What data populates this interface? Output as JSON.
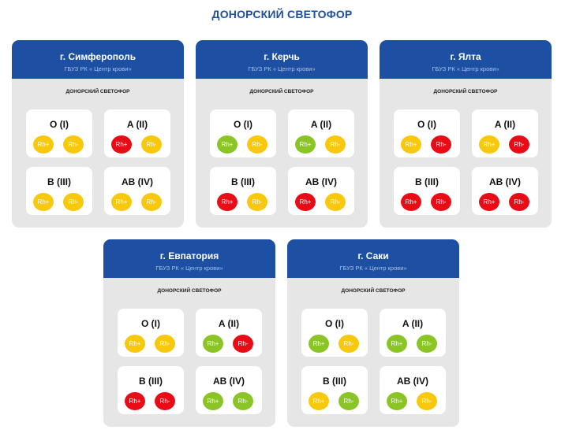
{
  "page_title": "ДОНОРСКИЙ СВЕТОФОР",
  "colors": {
    "yellow": "#f7c600",
    "red": "#e8000b",
    "green": "#84c21a",
    "header_blue": "#1d4fa3"
  },
  "cards": [
    {
      "city": "г. Симферополь",
      "org": "ГБУЗ РК « Центр крови»",
      "subtitle": "ДОНОРСКИЙ СВЕТОФОР",
      "groups": [
        {
          "label": "O (I)",
          "pos": {
            "label": "Rh+",
            "status": "yellow"
          },
          "neg": {
            "label": "Rh-",
            "status": "yellow"
          }
        },
        {
          "label": "A (II)",
          "pos": {
            "label": "Rh+",
            "status": "red"
          },
          "neg": {
            "label": "Rh-",
            "status": "yellow"
          }
        },
        {
          "label": "B (III)",
          "pos": {
            "label": "Rh+",
            "status": "yellow"
          },
          "neg": {
            "label": "Rh-",
            "status": "yellow"
          }
        },
        {
          "label": "AB (IV)",
          "pos": {
            "label": "Rh+",
            "status": "yellow"
          },
          "neg": {
            "label": "Rh-",
            "status": "yellow"
          }
        }
      ]
    },
    {
      "city": "г. Керчь",
      "org": "ГБУЗ РК « Центр крови»",
      "subtitle": "ДОНОРСКИЙ СВЕТОФОР",
      "groups": [
        {
          "label": "O (I)",
          "pos": {
            "label": "Rh+",
            "status": "green"
          },
          "neg": {
            "label": "Rh-",
            "status": "yellow"
          }
        },
        {
          "label": "A (II)",
          "pos": {
            "label": "Rh+",
            "status": "green"
          },
          "neg": {
            "label": "Rh-",
            "status": "yellow"
          }
        },
        {
          "label": "B (III)",
          "pos": {
            "label": "Rh+",
            "status": "red"
          },
          "neg": {
            "label": "Rh-",
            "status": "yellow"
          }
        },
        {
          "label": "AB (IV)",
          "pos": {
            "label": "Rh+",
            "status": "red"
          },
          "neg": {
            "label": "Rh-",
            "status": "yellow"
          }
        }
      ]
    },
    {
      "city": "г. Ялта",
      "org": "ГБУЗ РК « Центр крови»",
      "subtitle": "ДОНОРСКИЙ СВЕТОФОР",
      "groups": [
        {
          "label": "O (I)",
          "pos": {
            "label": "Rh+",
            "status": "yellow"
          },
          "neg": {
            "label": "Rh-",
            "status": "red"
          }
        },
        {
          "label": "A (II)",
          "pos": {
            "label": "Rh+",
            "status": "yellow"
          },
          "neg": {
            "label": "Rh-",
            "status": "red"
          }
        },
        {
          "label": "B (III)",
          "pos": {
            "label": "Rh+",
            "status": "red"
          },
          "neg": {
            "label": "Rh-",
            "status": "red"
          }
        },
        {
          "label": "AB (IV)",
          "pos": {
            "label": "Rh+",
            "status": "red"
          },
          "neg": {
            "label": "Rh-",
            "status": "red"
          }
        }
      ]
    },
    {
      "city": "г. Евпатория",
      "org": "ГБУЗ РК « Центр крови»",
      "subtitle": "ДОНОРСКИЙ СВЕТОФОР",
      "groups": [
        {
          "label": "O (I)",
          "pos": {
            "label": "Rh+",
            "status": "yellow"
          },
          "neg": {
            "label": "Rh-",
            "status": "yellow"
          }
        },
        {
          "label": "A (II)",
          "pos": {
            "label": "Rh+",
            "status": "green"
          },
          "neg": {
            "label": "Rh-",
            "status": "red"
          }
        },
        {
          "label": "B (III)",
          "pos": {
            "label": "Rh+",
            "status": "red"
          },
          "neg": {
            "label": "Rh-",
            "status": "red"
          }
        },
        {
          "label": "AB (IV)",
          "pos": {
            "label": "Rh+",
            "status": "green"
          },
          "neg": {
            "label": "Rh-",
            "status": "green"
          }
        }
      ]
    },
    {
      "city": "г. Саки",
      "org": "ГБУЗ РК « Центр крови»",
      "subtitle": "ДОНОРСКИЙ СВЕТОФОР",
      "groups": [
        {
          "label": "O (I)",
          "pos": {
            "label": "Rh+",
            "status": "green"
          },
          "neg": {
            "label": "Rh-",
            "status": "yellow"
          }
        },
        {
          "label": "A (II)",
          "pos": {
            "label": "Rh+",
            "status": "green"
          },
          "neg": {
            "label": "Rh-",
            "status": "green"
          }
        },
        {
          "label": "B (III)",
          "pos": {
            "label": "Rh+",
            "status": "yellow"
          },
          "neg": {
            "label": "Rh-",
            "status": "green"
          }
        },
        {
          "label": "AB (IV)",
          "pos": {
            "label": "Rh+",
            "status": "green"
          },
          "neg": {
            "label": "Rh-",
            "status": "yellow"
          }
        }
      ]
    }
  ]
}
